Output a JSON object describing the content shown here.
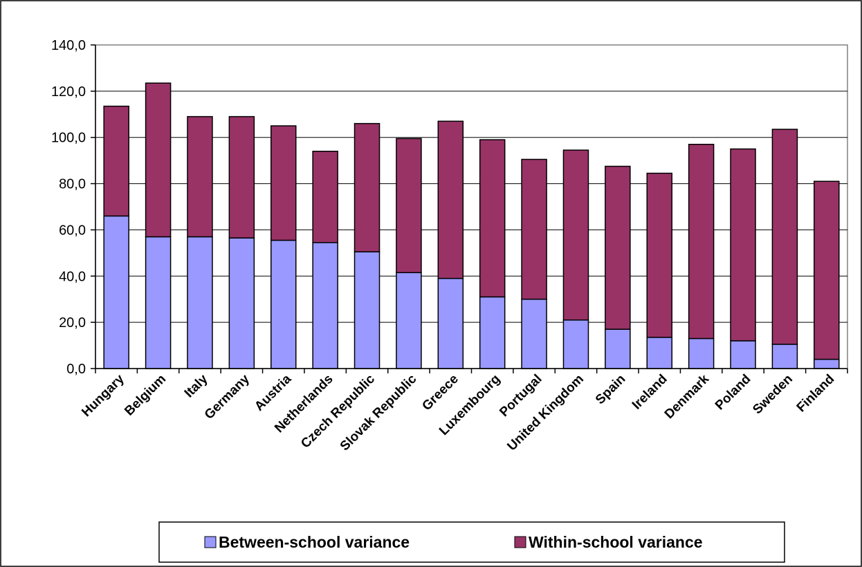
{
  "chart_data": {
    "type": "bar",
    "stacked": true,
    "categories": [
      "Hungary",
      "Belgium",
      "Italy",
      "Germany",
      "Austria",
      "Netherlands",
      "Czech Republic",
      "Slovak Republic",
      "Greece",
      "Luxembourg",
      "Portugal",
      "United Kingdom",
      "Spain",
      "Ireland",
      "Denmark",
      "Poland",
      "Sweden",
      "Finland"
    ],
    "series": [
      {
        "name": "Between-school variance",
        "color": "#9999ff",
        "values": [
          66.0,
          57.0,
          57.0,
          56.5,
          55.5,
          54.5,
          50.5,
          41.5,
          39.0,
          31.0,
          30.0,
          21.0,
          17.0,
          13.5,
          13.0,
          12.0,
          10.5,
          4.0
        ]
      },
      {
        "name": "Within-school variance",
        "color": "#993366",
        "values": [
          47.5,
          66.5,
          52.0,
          52.5,
          49.5,
          39.5,
          55.5,
          58.0,
          68.0,
          68.0,
          60.5,
          73.5,
          70.5,
          71.0,
          84.0,
          83.0,
          93.0,
          77.0
        ]
      }
    ],
    "ylim": [
      0,
      140
    ],
    "yticks": [
      "0,0",
      "20,0",
      "40,0",
      "60,0",
      "80,0",
      "100,0",
      "120,0",
      "140,0"
    ],
    "grid": true,
    "legend_position": "bottom"
  }
}
